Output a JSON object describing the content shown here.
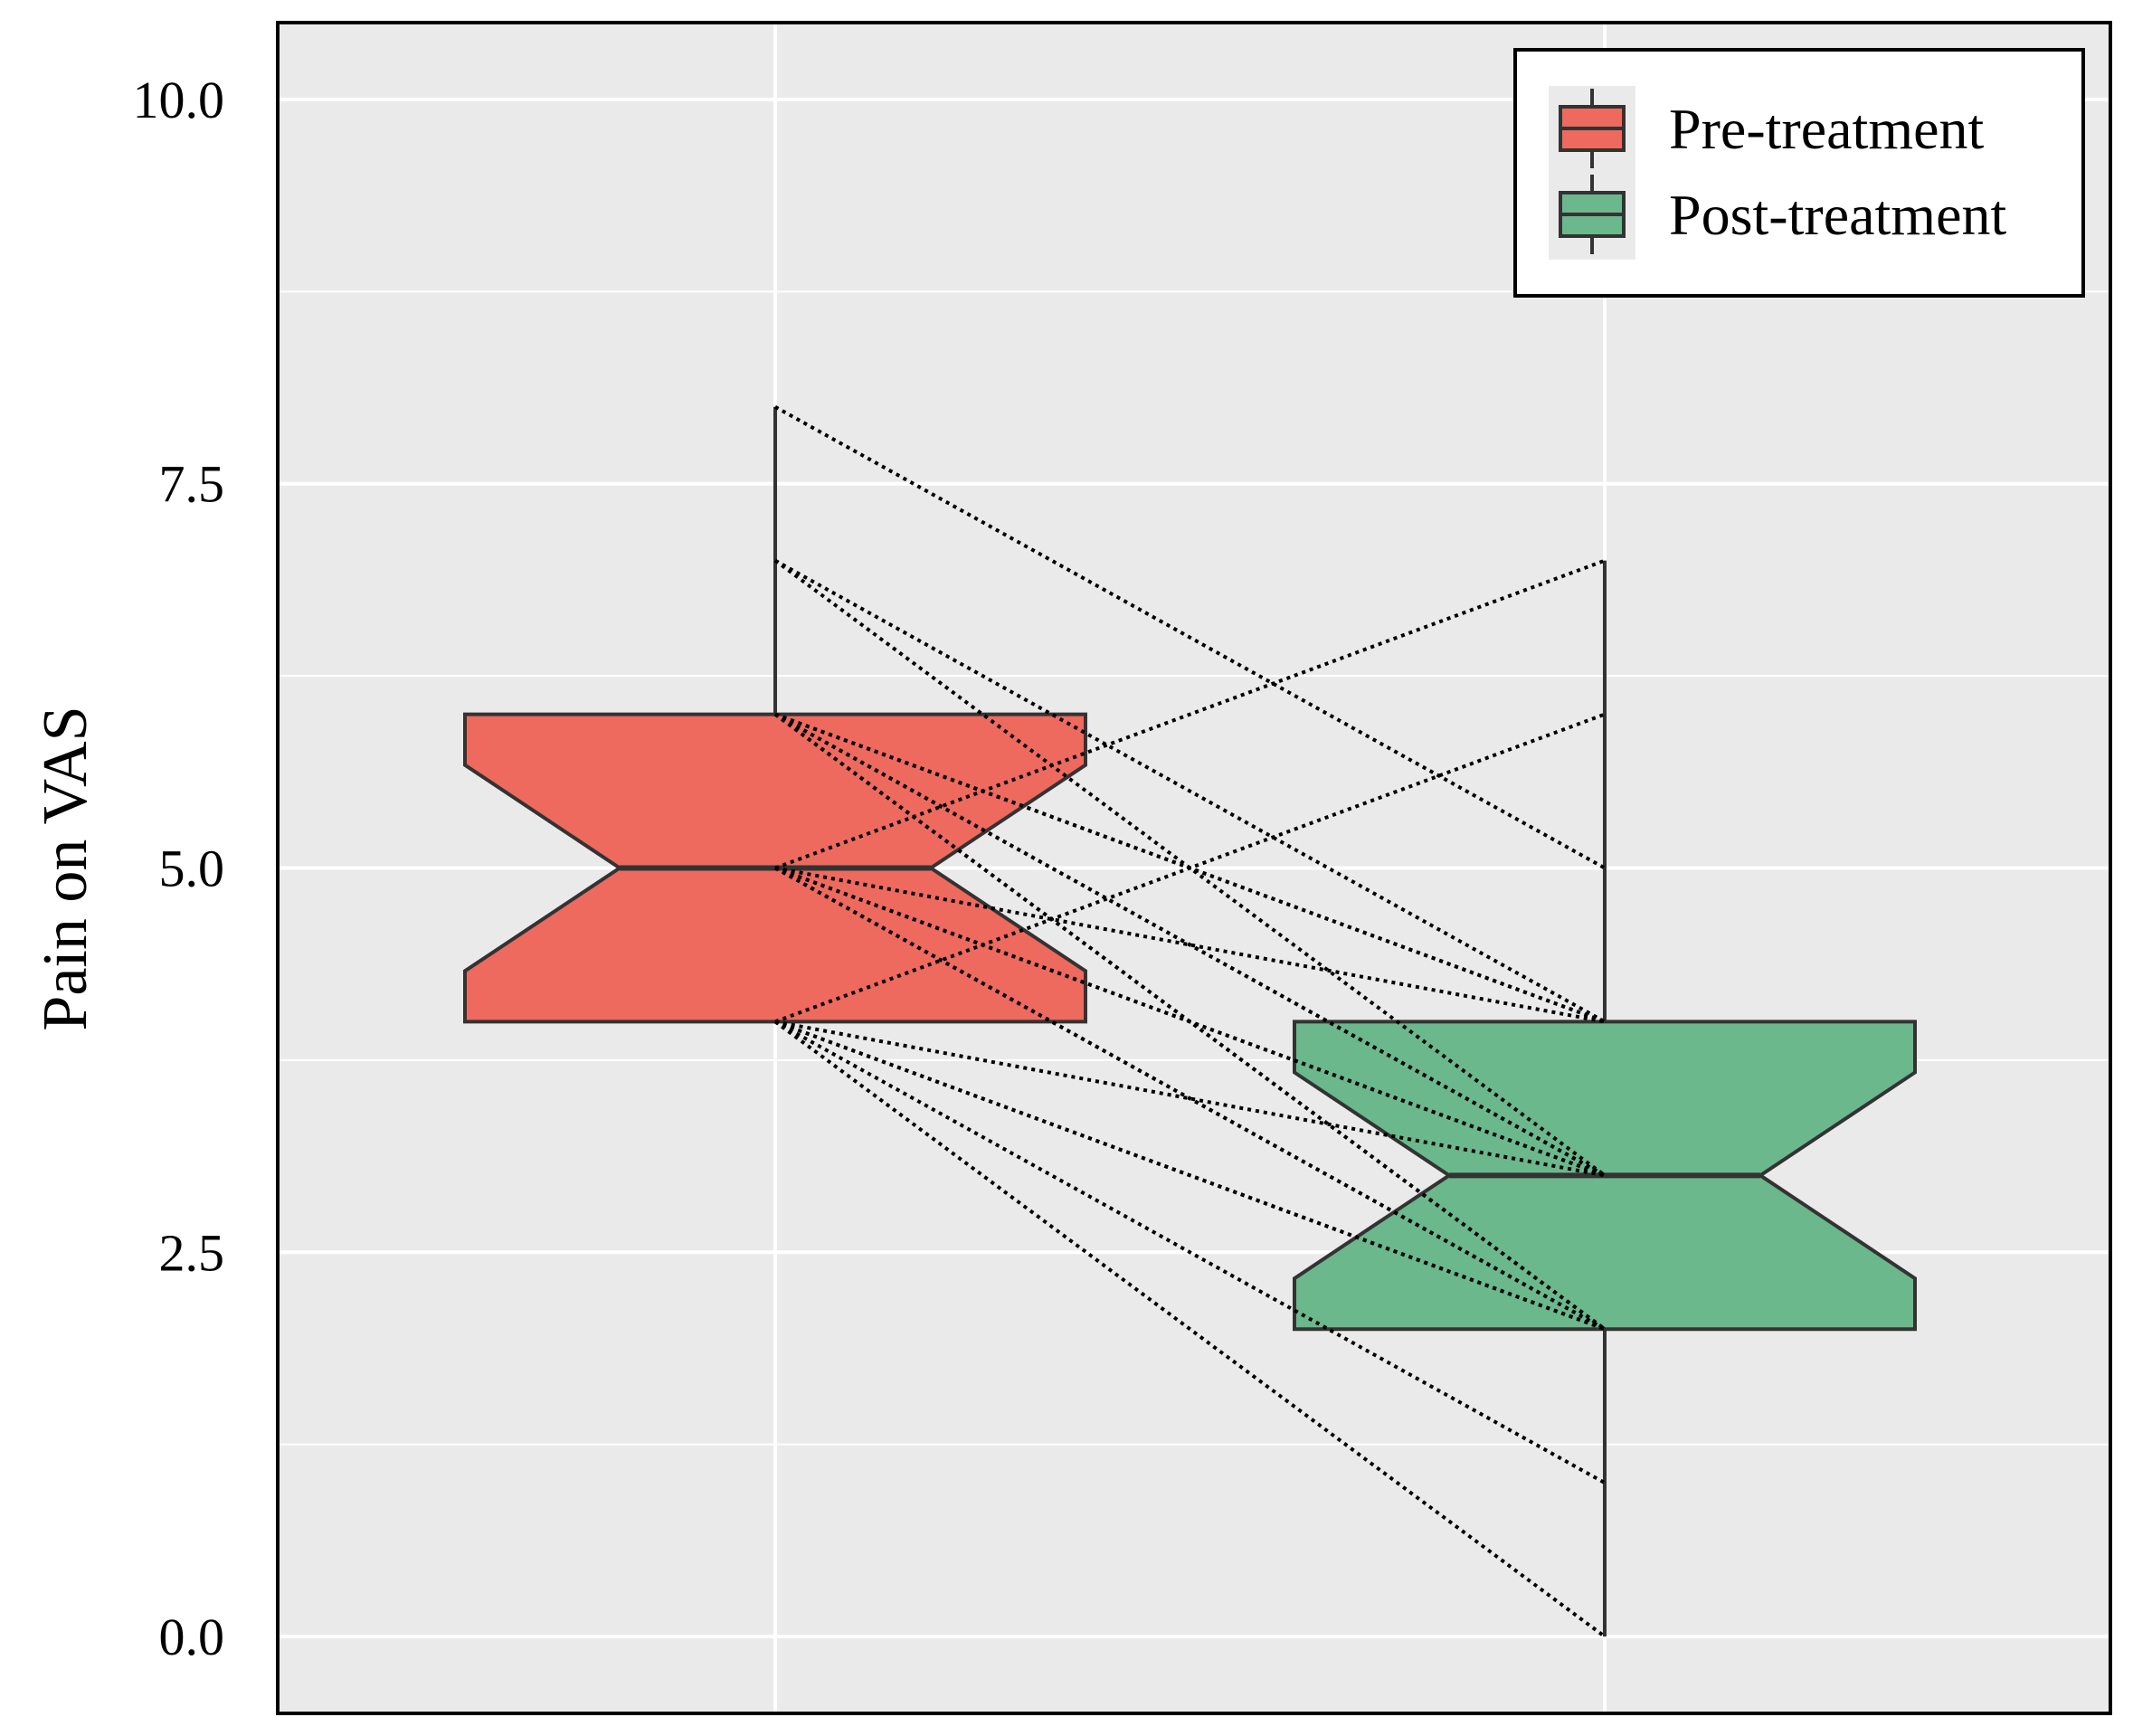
{
  "chart_data": {
    "type": "box",
    "title": "",
    "xlabel": "",
    "ylabel": "Pain on VAS",
    "ylim": [
      -0.5,
      10.5
    ],
    "yticks": [
      0.0,
      2.5,
      5.0,
      7.5,
      10.0
    ],
    "ytick_labels": [
      "0.0",
      "2.5",
      "5.0",
      "7.5",
      "10.0"
    ],
    "grid": true,
    "legend_position": "top-right",
    "notched": true,
    "series": [
      {
        "name": "Pre-treatment",
        "color": "#EE6A5E",
        "whisker_low": 4,
        "q1": 4,
        "median": 5,
        "q3": 6,
        "whisker_high": 8,
        "notch_low": 4.33,
        "notch_high": 5.67
      },
      {
        "name": "Post-treatment",
        "color": "#6AB88C",
        "whisker_low": 0,
        "q1": 2,
        "median": 3,
        "q3": 4,
        "whisker_high": 7,
        "notch_low": 2.33,
        "notch_high": 3.67
      }
    ],
    "paired_lines": [
      [
        8,
        5
      ],
      [
        7,
        3
      ],
      [
        7,
        4
      ],
      [
        6,
        4
      ],
      [
        6,
        4
      ],
      [
        6,
        3
      ],
      [
        6,
        3
      ],
      [
        6,
        2
      ],
      [
        6,
        2
      ],
      [
        5,
        7
      ],
      [
        5,
        4
      ],
      [
        5,
        3
      ],
      [
        5,
        3
      ],
      [
        5,
        2
      ],
      [
        5,
        2
      ],
      [
        4,
        6
      ],
      [
        4,
        3
      ],
      [
        4,
        2
      ],
      [
        4,
        2
      ],
      [
        4,
        1
      ],
      [
        4,
        0
      ]
    ]
  },
  "colors": {
    "panel_background": "#EAEAEA",
    "grid": "#FFFFFF",
    "outline": "#333333"
  }
}
